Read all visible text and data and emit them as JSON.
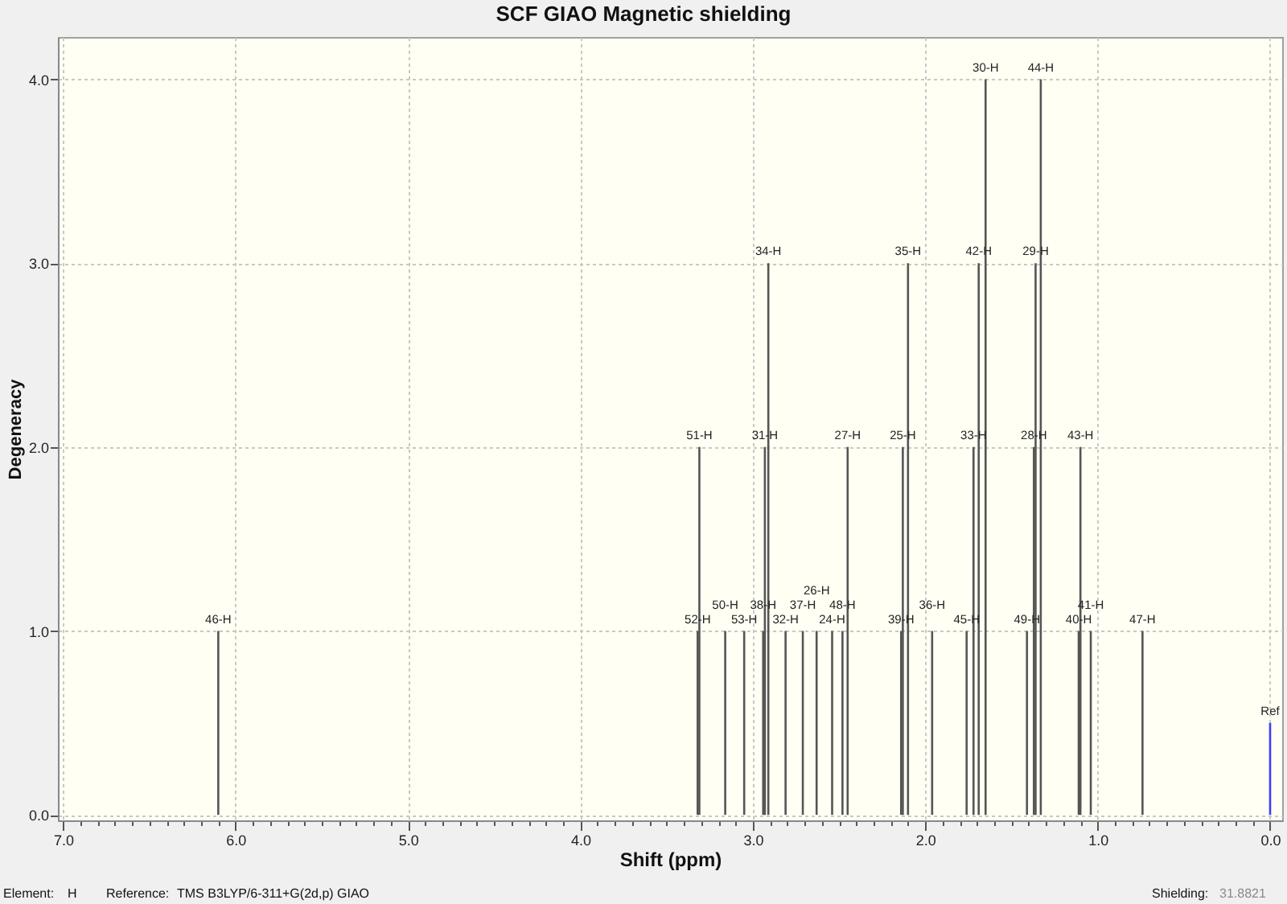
{
  "chart_data": {
    "type": "bar",
    "title": "SCF GIAO Magnetic shielding",
    "xlabel": "Shift (ppm)",
    "ylabel": "Degeneracy",
    "x": [
      6.1,
      3.32,
      3.31,
      3.16,
      3.05,
      2.94,
      2.93,
      2.91,
      2.81,
      2.71,
      2.63,
      2.54,
      2.48,
      2.45,
      2.14,
      2.13,
      2.1,
      1.96,
      1.76,
      1.72,
      1.69,
      1.65,
      1.41,
      1.37,
      1.36,
      1.33,
      1.11,
      1.1,
      1.04,
      0.74,
      0.0
    ],
    "values": [
      1,
      1,
      2,
      1,
      1,
      1,
      2,
      3,
      1,
      1,
      1,
      1,
      1,
      2,
      1,
      2,
      3,
      1,
      1,
      2,
      3,
      4,
      1,
      2,
      3,
      4,
      1,
      2,
      1,
      1,
      0.5
    ],
    "colors": [
      "#555555",
      "#555555",
      "#555555",
      "#555555",
      "#555555",
      "#555555",
      "#555555",
      "#555555",
      "#555555",
      "#555555",
      "#555555",
      "#555555",
      "#555555",
      "#555555",
      "#555555",
      "#555555",
      "#555555",
      "#555555",
      "#555555",
      "#555555",
      "#555555",
      "#555555",
      "#555555",
      "#555555",
      "#555555",
      "#555555",
      "#555555",
      "#555555",
      "#555555",
      "#555555",
      "#3c3cff"
    ],
    "xlim": [
      7.03,
      -0.07
    ],
    "ylim": [
      -0.03,
      4.23
    ],
    "xticks": [
      {
        "value": 7.0,
        "label": "7.0"
      },
      {
        "value": 6.9,
        "label": null
      },
      {
        "value": 6.8,
        "label": null
      },
      {
        "value": 6.7,
        "label": null
      },
      {
        "value": 6.6,
        "label": null
      },
      {
        "value": 6.5,
        "label": null
      },
      {
        "value": 6.4,
        "label": null
      },
      {
        "value": 6.3,
        "label": null
      },
      {
        "value": 6.2,
        "label": null
      },
      {
        "value": 6.1,
        "label": null
      },
      {
        "value": 6.0,
        "label": "6.0"
      },
      {
        "value": 5.9,
        "label": null
      },
      {
        "value": 5.8,
        "label": null
      },
      {
        "value": 5.7,
        "label": null
      },
      {
        "value": 5.6,
        "label": null
      },
      {
        "value": 5.5,
        "label": null
      },
      {
        "value": 5.4,
        "label": null
      },
      {
        "value": 5.3,
        "label": null
      },
      {
        "value": 5.2,
        "label": null
      },
      {
        "value": 5.1,
        "label": null
      },
      {
        "value": 5.0,
        "label": "5.0"
      },
      {
        "value": 4.9,
        "label": null
      },
      {
        "value": 4.8,
        "label": null
      },
      {
        "value": 4.7,
        "label": null
      },
      {
        "value": 4.6,
        "label": null
      },
      {
        "value": 4.5,
        "label": null
      },
      {
        "value": 4.4,
        "label": null
      },
      {
        "value": 4.3,
        "label": null
      },
      {
        "value": 4.2,
        "label": null
      },
      {
        "value": 4.1,
        "label": null
      },
      {
        "value": 4.0,
        "label": "4.0"
      },
      {
        "value": 3.9,
        "label": null
      },
      {
        "value": 3.8,
        "label": null
      },
      {
        "value": 3.7,
        "label": null
      },
      {
        "value": 3.6,
        "label": null
      },
      {
        "value": 3.5,
        "label": null
      },
      {
        "value": 3.4,
        "label": null
      },
      {
        "value": 3.3,
        "label": null
      },
      {
        "value": 3.2,
        "label": null
      },
      {
        "value": 3.1,
        "label": null
      },
      {
        "value": 3.0,
        "label": "3.0"
      },
      {
        "value": 2.9,
        "label": null
      },
      {
        "value": 2.8,
        "label": null
      },
      {
        "value": 2.7,
        "label": null
      },
      {
        "value": 2.6,
        "label": null
      },
      {
        "value": 2.5,
        "label": null
      },
      {
        "value": 2.4,
        "label": null
      },
      {
        "value": 2.3,
        "label": null
      },
      {
        "value": 2.2,
        "label": null
      },
      {
        "value": 2.1,
        "label": null
      },
      {
        "value": 2.0,
        "label": "2.0"
      },
      {
        "value": 1.9,
        "label": null
      },
      {
        "value": 1.8,
        "label": null
      },
      {
        "value": 1.7,
        "label": null
      },
      {
        "value": 1.6,
        "label": null
      },
      {
        "value": 1.5,
        "label": null
      },
      {
        "value": 1.4,
        "label": null
      },
      {
        "value": 1.3,
        "label": null
      },
      {
        "value": 1.2,
        "label": null
      },
      {
        "value": 1.1,
        "label": null
      },
      {
        "value": 1.0,
        "label": "1.0"
      },
      {
        "value": 0.9,
        "label": null
      },
      {
        "value": 0.8,
        "label": null
      },
      {
        "value": 0.7,
        "label": null
      },
      {
        "value": 0.6,
        "label": null
      },
      {
        "value": 0.5,
        "label": null
      },
      {
        "value": 0.4,
        "label": null
      },
      {
        "value": 0.3,
        "label": null
      },
      {
        "value": 0.2,
        "label": null
      },
      {
        "value": 0.1,
        "label": null
      },
      {
        "value": 0.0,
        "label": "0.0"
      }
    ],
    "yticks": [
      {
        "value": 0,
        "label": "0.0"
      },
      {
        "value": 1,
        "label": "1.0"
      },
      {
        "value": 2,
        "label": "2.0"
      },
      {
        "value": 3,
        "label": "3.0"
      },
      {
        "value": 4,
        "label": "4.0"
      }
    ],
    "grid": true,
    "annotations": [
      {
        "text": "46-H",
        "x": 6.1,
        "y": 1
      },
      {
        "text": "52-H",
        "x": 3.32,
        "y": 1
      },
      {
        "text": "51-H",
        "x": 3.31,
        "y": 2
      },
      {
        "text": "50-H",
        "x": 3.16,
        "y": 1
      },
      {
        "text": "53-H",
        "x": 3.05,
        "y": 1
      },
      {
        "text": "38-H",
        "x": 2.94,
        "y": 1
      },
      {
        "text": "31-H",
        "x": 2.93,
        "y": 2
      },
      {
        "text": "34-H",
        "x": 2.91,
        "y": 3
      },
      {
        "text": "32-H",
        "x": 2.81,
        "y": 1
      },
      {
        "text": "37-H",
        "x": 2.71,
        "y": 1
      },
      {
        "text": "26-H",
        "x": 2.63,
        "y": 1
      },
      {
        "text": "24-H",
        "x": 2.54,
        "y": 1
      },
      {
        "text": "48-H",
        "x": 2.48,
        "y": 1
      },
      {
        "text": "27-H",
        "x": 2.45,
        "y": 2
      },
      {
        "text": "39-H",
        "x": 2.14,
        "y": 1
      },
      {
        "text": "25-H",
        "x": 2.13,
        "y": 2
      },
      {
        "text": "35-H",
        "x": 2.1,
        "y": 3
      },
      {
        "text": "36-H",
        "x": 1.96,
        "y": 1
      },
      {
        "text": "45-H",
        "x": 1.76,
        "y": 1
      },
      {
        "text": "33-H",
        "x": 1.72,
        "y": 2
      },
      {
        "text": "42-H",
        "x": 1.69,
        "y": 3
      },
      {
        "text": "30-H",
        "x": 1.65,
        "y": 4
      },
      {
        "text": "49-H",
        "x": 1.41,
        "y": 1
      },
      {
        "text": "28-H",
        "x": 1.37,
        "y": 2
      },
      {
        "text": "29-H",
        "x": 1.36,
        "y": 3
      },
      {
        "text": "44-H",
        "x": 1.33,
        "y": 4
      },
      {
        "text": "40-H",
        "x": 1.11,
        "y": 1
      },
      {
        "text": "43-H",
        "x": 1.1,
        "y": 2
      },
      {
        "text": "41-H",
        "x": 1.04,
        "y": 1
      },
      {
        "text": "47-H",
        "x": 0.74,
        "y": 1
      },
      {
        "text": "Ref",
        "x": 0.0,
        "y": 0.5
      },
      "Element:",
      "H",
      "Reference:",
      "TMS B3LYP/6-311+G(2d,p) GIAO",
      "Shielding:",
      "31.8821"
    ]
  }
}
